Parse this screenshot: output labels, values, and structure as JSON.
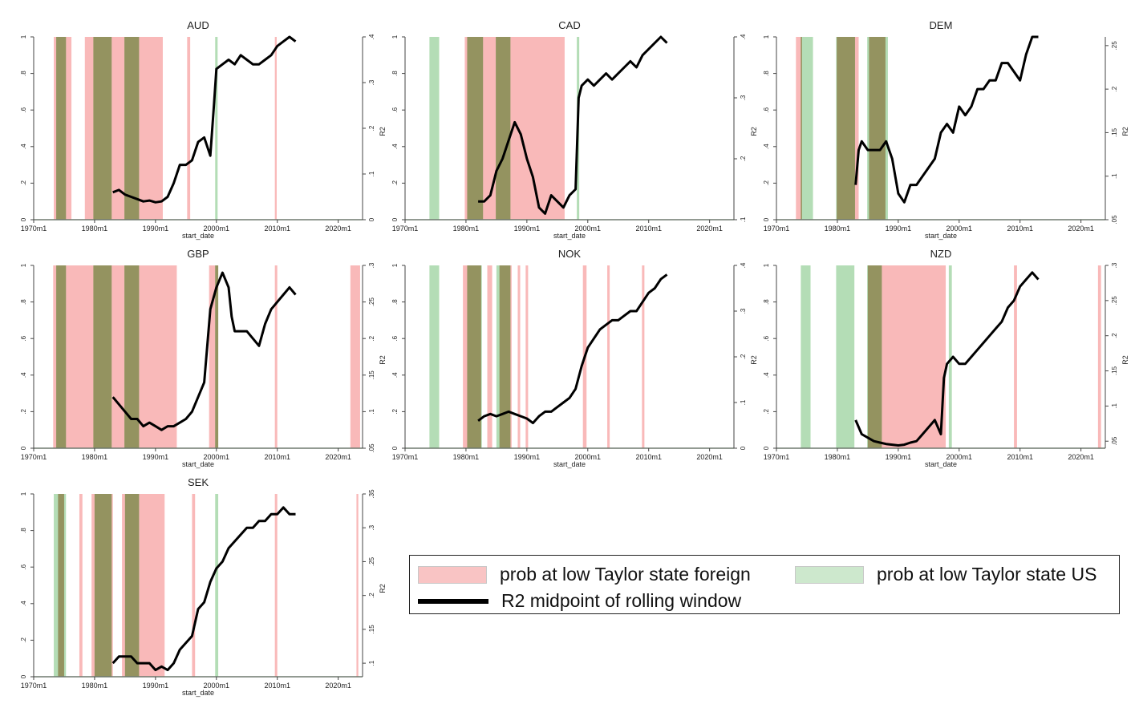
{
  "colors": {
    "foreign": "#f7a8a8",
    "us": "#a7d7a9",
    "overlap": "#8a7d47",
    "r2": "#000000",
    "axis": "#444444"
  },
  "legend": {
    "foreign_label": "prob at low Taylor state foreign",
    "us_label": "prob at low Taylor state US",
    "r2_label": "R2 midpoint of rolling window"
  },
  "chart_data": [
    {
      "type": "area+line",
      "title": "AUD",
      "xlabel": "start_date",
      "ylabel_left": "",
      "ylabel_right": "R2",
      "x_ticks": [
        "1970m1",
        "1980m1",
        "1990m1",
        "2000m1",
        "2010m1",
        "2020m1"
      ],
      "ylim_left": [
        0,
        1
      ],
      "y_ticks_left": [
        "0",
        ".2",
        ".4",
        ".6",
        ".8",
        "1"
      ],
      "ylim_right": [
        0,
        0.4
      ],
      "y_ticks_right": [
        "0",
        ".1",
        ".2",
        ".3",
        ".4"
      ],
      "foreign_high_periods": [
        [
          1973.3,
          1976.2
        ],
        [
          1978.4,
          1991.2
        ],
        [
          1995.2,
          1995.7
        ],
        [
          2009.6,
          2009.9
        ]
      ],
      "us_high_periods": [
        [
          1973.7,
          1975.3
        ],
        [
          1979.8,
          1982.8
        ],
        [
          1984.9,
          1987.3
        ],
        [
          1999.8,
          2000.2
        ]
      ],
      "r2_series": {
        "x": [
          1983,
          1984,
          1985,
          1986,
          1987,
          1988,
          1989,
          1990,
          1991,
          1992,
          1993,
          1994,
          1995,
          1996,
          1997,
          1998,
          1999,
          1999.6,
          2000,
          2001,
          2002,
          2003,
          2004,
          2005,
          2006,
          2007,
          2008,
          2009,
          2010,
          2011,
          2012,
          2013
        ],
        "y": [
          0.06,
          0.065,
          0.055,
          0.05,
          0.045,
          0.04,
          0.042,
          0.038,
          0.04,
          0.05,
          0.08,
          0.12,
          0.12,
          0.13,
          0.17,
          0.18,
          0.14,
          0.25,
          0.33,
          0.34,
          0.35,
          0.34,
          0.36,
          0.35,
          0.34,
          0.34,
          0.35,
          0.36,
          0.38,
          0.39,
          0.4,
          0.39
        ]
      }
    },
    {
      "type": "area+line",
      "title": "CAD",
      "xlabel": "start_date",
      "ylabel_left": "",
      "ylabel_right": "R2",
      "x_ticks": [
        "1970m1",
        "1980m1",
        "1990m1",
        "2000m1",
        "2010m1",
        "2020m1"
      ],
      "ylim_left": [
        0,
        1
      ],
      "y_ticks_left": [
        "0",
        ".2",
        ".4",
        ".6",
        ".8",
        "1"
      ],
      "ylim_right": [
        0.1,
        0.4
      ],
      "y_ticks_right": [
        ".1",
        ".2",
        ".3",
        ".4"
      ],
      "foreign_high_periods": [
        [
          1979.8,
          1996.2
        ]
      ],
      "us_high_periods": [
        [
          1974.0,
          1975.6
        ],
        [
          1980.2,
          1982.8
        ],
        [
          1984.9,
          1987.3
        ],
        [
          1998.2,
          1998.6
        ]
      ],
      "r2_series": {
        "x": [
          1982,
          1983,
          1984,
          1985,
          1986,
          1987,
          1988,
          1989,
          1990,
          1991,
          1992,
          1993,
          1994,
          1995,
          1996,
          1997,
          1998,
          1998.5,
          1999,
          2000,
          2001,
          2002,
          2003,
          2004,
          2005,
          2006,
          2007,
          2008,
          2009,
          2010,
          2011,
          2012,
          2013
        ],
        "y": [
          0.13,
          0.13,
          0.14,
          0.18,
          0.2,
          0.23,
          0.26,
          0.24,
          0.2,
          0.17,
          0.12,
          0.11,
          0.14,
          0.13,
          0.12,
          0.14,
          0.15,
          0.3,
          0.32,
          0.33,
          0.32,
          0.33,
          0.34,
          0.33,
          0.34,
          0.35,
          0.36,
          0.35,
          0.37,
          0.38,
          0.39,
          0.4,
          0.39
        ]
      }
    },
    {
      "type": "area+line",
      "title": "DEM",
      "xlabel": "start_date",
      "ylabel_left": "",
      "ylabel_right": "R2",
      "x_ticks": [
        "1970m1",
        "1980m1",
        "1990m1",
        "2000m1",
        "2010m1",
        "2020m1"
      ],
      "ylim_left": [
        0,
        1
      ],
      "y_ticks_left": [
        "0",
        ".2",
        ".4",
        ".6",
        ".8",
        "1"
      ],
      "ylim_right": [
        0.05,
        0.26
      ],
      "y_ticks_right": [
        ".05",
        ".1",
        ".15",
        ".2",
        ".25"
      ],
      "foreign_high_periods": [
        [
          1973.2,
          1974.2
        ],
        [
          1979.9,
          1983.5
        ],
        [
          1985.2,
          1987.9
        ]
      ],
      "us_high_periods": [
        [
          1974.0,
          1976.0
        ],
        [
          1979.8,
          1982.9
        ],
        [
          1984.9,
          1988.3
        ]
      ],
      "r2_series": {
        "x": [
          1983,
          1983.5,
          1984,
          1985,
          1986,
          1987,
          1988,
          1989,
          1990,
          1991,
          1992,
          1993,
          1994,
          1995,
          1996,
          1997,
          1998,
          1999,
          2000,
          2001,
          2002,
          2003,
          2004,
          2005,
          2006,
          2007,
          2008,
          2009,
          2010,
          2011,
          2012,
          2013
        ],
        "y": [
          0.09,
          0.13,
          0.14,
          0.13,
          0.13,
          0.13,
          0.14,
          0.12,
          0.08,
          0.07,
          0.09,
          0.09,
          0.1,
          0.11,
          0.12,
          0.15,
          0.16,
          0.15,
          0.18,
          0.17,
          0.18,
          0.2,
          0.2,
          0.21,
          0.21,
          0.23,
          0.23,
          0.22,
          0.21,
          0.24,
          0.26,
          0.26
        ]
      }
    },
    {
      "type": "area+line",
      "title": "GBP",
      "xlabel": "start_date",
      "ylabel_left": "",
      "ylabel_right": "R2",
      "x_ticks": [
        "1970m1",
        "1980m1",
        "1990m1",
        "2000m1",
        "2010m1",
        "2020m1"
      ],
      "ylim_left": [
        0,
        1
      ],
      "y_ticks_left": [
        "0",
        ".2",
        ".4",
        ".6",
        ".8",
        "1"
      ],
      "ylim_right": [
        0.05,
        0.3
      ],
      "y_ticks_right": [
        ".05",
        ".1",
        ".15",
        ".2",
        ".25",
        ".3"
      ],
      "foreign_high_periods": [
        [
          1973.2,
          1993.5
        ],
        [
          1998.8,
          2000.3
        ],
        [
          2009.6,
          2010.0
        ],
        [
          2022.0,
          2023.6
        ]
      ],
      "us_high_periods": [
        [
          1973.7,
          1975.3
        ],
        [
          1979.8,
          1982.8
        ],
        [
          1984.9,
          1987.3
        ],
        [
          1999.8,
          2000.3
        ]
      ],
      "r2_series": {
        "x": [
          1983,
          1984,
          1985,
          1986,
          1987,
          1988,
          1989,
          1990,
          1991,
          1992,
          1993,
          1994,
          1995,
          1996,
          1997,
          1998,
          1999,
          2000,
          2001,
          2002,
          2002.5,
          2003,
          2004,
          2005,
          2006,
          2007,
          2008,
          2009,
          2010,
          2011,
          2012,
          2013
        ],
        "y": [
          0.12,
          0.11,
          0.1,
          0.09,
          0.09,
          0.08,
          0.085,
          0.08,
          0.075,
          0.08,
          0.08,
          0.085,
          0.09,
          0.1,
          0.12,
          0.14,
          0.24,
          0.27,
          0.29,
          0.27,
          0.23,
          0.21,
          0.21,
          0.21,
          0.2,
          0.19,
          0.22,
          0.24,
          0.25,
          0.26,
          0.27,
          0.26
        ]
      }
    },
    {
      "type": "area+line",
      "title": "NOK",
      "xlabel": "start_date",
      "ylabel_left": "",
      "ylabel_right": "R2",
      "x_ticks": [
        "1970m1",
        "1980m1",
        "1990m1",
        "2000m1",
        "2010m1",
        "2020m1"
      ],
      "ylim_left": [
        0,
        1
      ],
      "y_ticks_left": [
        "0",
        ".2",
        ".4",
        ".6",
        ".8",
        "1"
      ],
      "ylim_right": [
        0,
        0.4
      ],
      "y_ticks_right": [
        "0",
        ".1",
        ".2",
        ".3",
        ".4"
      ],
      "foreign_high_periods": [
        [
          1979.5,
          1982.5
        ],
        [
          1983.5,
          1984.3
        ],
        [
          1985.5,
          1987.5
        ],
        [
          1988.5,
          1988.9
        ],
        [
          1989.8,
          1990.2
        ],
        [
          1999.2,
          1999.8
        ],
        [
          2003.2,
          2003.6
        ],
        [
          2008.9,
          2009.3
        ]
      ],
      "us_high_periods": [
        [
          1974.0,
          1975.6
        ],
        [
          1980.2,
          1982.6
        ],
        [
          1985.0,
          1987.3
        ]
      ],
      "r2_series": {
        "x": [
          1982,
          1983,
          1984,
          1985,
          1986,
          1987,
          1988,
          1989,
          1990,
          1991,
          1992,
          1993,
          1994,
          1995,
          1996,
          1997,
          1998,
          1999,
          2000,
          2001,
          2002,
          2003,
          2004,
          2005,
          2006,
          2007,
          2008,
          2009,
          2010,
          2011,
          2012,
          2013
        ],
        "y": [
          0.06,
          0.07,
          0.075,
          0.07,
          0.075,
          0.08,
          0.075,
          0.07,
          0.065,
          0.055,
          0.07,
          0.08,
          0.08,
          0.09,
          0.1,
          0.11,
          0.13,
          0.18,
          0.22,
          0.24,
          0.26,
          0.27,
          0.28,
          0.28,
          0.29,
          0.3,
          0.3,
          0.32,
          0.34,
          0.35,
          0.37,
          0.38
        ]
      }
    },
    {
      "type": "area+line",
      "title": "NZD",
      "xlabel": "start_date",
      "ylabel_left": "",
      "ylabel_right": "R2",
      "x_ticks": [
        "1970m1",
        "1980m1",
        "1990m1",
        "2000m1",
        "2010m1",
        "2020m1"
      ],
      "ylim_left": [
        0,
        1
      ],
      "y_ticks_left": [
        "0",
        ".2",
        ".4",
        ".6",
        ".8",
        "1"
      ],
      "ylim_right": [
        0.04,
        0.3
      ],
      "y_ticks_right": [
        ".05",
        ".1",
        ".15",
        ".2",
        ".25",
        ".3"
      ],
      "foreign_high_periods": [
        [
          1985.0,
          1997.8
        ],
        [
          2009.0,
          2009.5
        ],
        [
          2022.8,
          2023.3
        ]
      ],
      "us_high_periods": [
        [
          1974.0,
          1975.6
        ],
        [
          1979.8,
          1982.8
        ],
        [
          1984.9,
          1987.3
        ],
        [
          1998.3,
          1998.8
        ]
      ],
      "r2_series": {
        "x": [
          1983,
          1984,
          1985,
          1986,
          1987,
          1988,
          1989,
          1990,
          1991,
          1992,
          1993,
          1994,
          1995,
          1996,
          1997,
          1997.5,
          1998,
          1999,
          2000,
          2001,
          2002,
          2003,
          2004,
          2005,
          2006,
          2007,
          2008,
          2009,
          2010,
          2011,
          2012,
          2013
        ],
        "y": [
          0.08,
          0.06,
          0.055,
          0.05,
          0.048,
          0.046,
          0.045,
          0.044,
          0.045,
          0.048,
          0.05,
          0.06,
          0.07,
          0.08,
          0.06,
          0.14,
          0.16,
          0.17,
          0.16,
          0.16,
          0.17,
          0.18,
          0.19,
          0.2,
          0.21,
          0.22,
          0.24,
          0.25,
          0.27,
          0.28,
          0.29,
          0.28
        ]
      }
    },
    {
      "type": "area+line",
      "title": "SEK",
      "xlabel": "start_date",
      "ylabel_left": "",
      "ylabel_right": "R2",
      "x_ticks": [
        "1970m1",
        "1980m1",
        "1990m1",
        "2000m1",
        "2010m1",
        "2020m1"
      ],
      "ylim_left": [
        0,
        1
      ],
      "y_ticks_left": [
        "0",
        ".2",
        ".4",
        ".6",
        ".8",
        "1"
      ],
      "ylim_right": [
        0.08,
        0.35
      ],
      "y_ticks_right": [
        ".1",
        ".15",
        ".2",
        ".25",
        ".3",
        ".35"
      ],
      "foreign_high_periods": [
        [
          1974.0,
          1975.0
        ],
        [
          1977.5,
          1978.0
        ],
        [
          1979.5,
          1983.0
        ],
        [
          1984.5,
          1991.5
        ],
        [
          1996.0,
          1996.5
        ],
        [
          2009.6,
          2010.0
        ],
        [
          2023.0,
          2023.3
        ]
      ],
      "us_high_periods": [
        [
          1973.3,
          1975.3
        ],
        [
          1980.0,
          1982.8
        ],
        [
          1985.0,
          1987.3
        ],
        [
          1999.8,
          2000.3
        ]
      ],
      "r2_series": {
        "x": [
          1983,
          1984,
          1985,
          1986,
          1987,
          1988,
          1989,
          1990,
          1991,
          1992,
          1993,
          1994,
          1995,
          1996,
          1997,
          1998,
          1999,
          2000,
          2001,
          2002,
          2003,
          2004,
          2005,
          2006,
          2007,
          2008,
          2009,
          2010,
          2011,
          2012,
          2013
        ],
        "y": [
          0.1,
          0.11,
          0.11,
          0.11,
          0.1,
          0.1,
          0.1,
          0.09,
          0.095,
          0.09,
          0.1,
          0.12,
          0.13,
          0.14,
          0.18,
          0.19,
          0.22,
          0.24,
          0.25,
          0.27,
          0.28,
          0.29,
          0.3,
          0.3,
          0.31,
          0.31,
          0.32,
          0.32,
          0.33,
          0.32,
          0.32
        ]
      }
    }
  ]
}
